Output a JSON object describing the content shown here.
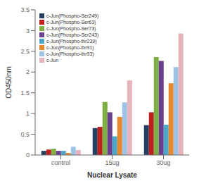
{
  "chart_data": {
    "type": "bar",
    "xlabel": "Nuclear Lysate",
    "ylabel": "OD450nm",
    "categories": [
      "control",
      "15ug",
      "30ug"
    ],
    "series": [
      {
        "name": "c-Jun(Phospho-Ser249)",
        "color": "#243F60",
        "values": [
          0.1,
          0.65,
          0.72
        ]
      },
      {
        "name": "c-Jun(Phospho-Ser63)",
        "color": "#BE1E1E",
        "values": [
          0.13,
          0.68,
          1.03
        ]
      },
      {
        "name": "c-Jun(Phospho-Ser73)",
        "color": "#7DAF44",
        "values": [
          0.15,
          1.28,
          2.36
        ]
      },
      {
        "name": "c-Jun(Phospho-Ser243)",
        "color": "#6B3E8E",
        "values": [
          0.1,
          1.03,
          2.27
        ]
      },
      {
        "name": "c-Jun(Phospho-thr239)",
        "color": "#4EA8C8",
        "values": [
          0.1,
          0.45,
          0.73
        ]
      },
      {
        "name": "c-Jun(Phospho-thr91)",
        "color": "#E6882A",
        "values": [
          0.05,
          0.92,
          1.73
        ]
      },
      {
        "name": "c-Jun(Phospho-thr93)",
        "color": "#9DC3E6",
        "values": [
          0.2,
          1.27,
          2.12
        ]
      },
      {
        "name": "c-Jun",
        "color": "#E8B4BC",
        "values": [
          0.12,
          1.8,
          2.93
        ]
      }
    ],
    "ylim": [
      0,
      3.5
    ],
    "yticks": [
      0,
      0.5,
      1.0,
      1.5,
      2.0,
      2.5,
      3.0,
      3.5
    ],
    "grid": false,
    "legend": "upper left"
  }
}
